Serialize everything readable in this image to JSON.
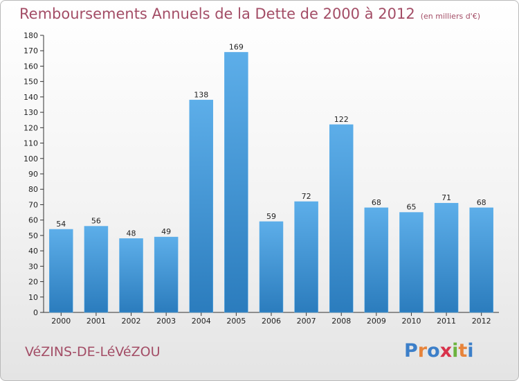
{
  "title": "Remboursements Annuels de la Dette de 2000 à 2012",
  "subtitle": "(en milliers d'€)",
  "commune": "VéZINS-DE-LéVéZOU",
  "logo": {
    "letters": [
      "P",
      "r",
      "o",
      "x",
      "i",
      "t",
      "i"
    ],
    "colors": [
      "#3c7fc9",
      "#e7843b",
      "#3c7fc9",
      "#d8324b",
      "#6cb33f",
      "#e7843b",
      "#3c7fc9"
    ]
  },
  "chart_data": {
    "type": "bar",
    "categories": [
      "2000",
      "2001",
      "2002",
      "2003",
      "2004",
      "2005",
      "2006",
      "2007",
      "2008",
      "2009",
      "2010",
      "2011",
      "2012"
    ],
    "values": [
      54,
      56,
      48,
      49,
      138,
      169,
      59,
      72,
      122,
      68,
      65,
      71,
      68
    ],
    "data_labels": [
      "54",
      "56",
      "48",
      "49",
      "138",
      "169",
      "59",
      "72",
      "122",
      "68",
      "65",
      "71",
      "68"
    ],
    "title": "Remboursements Annuels de la Dette de 2000 à 2012",
    "ylim": [
      0,
      180
    ],
    "yticks": [
      "0",
      "10",
      "20",
      "30",
      "40",
      "50",
      "60",
      "70",
      "80",
      "90",
      "100",
      "110",
      "120",
      "130",
      "140",
      "150",
      "160",
      "170",
      "180"
    ],
    "grid": false,
    "bar_color": "#4a9fe0"
  }
}
